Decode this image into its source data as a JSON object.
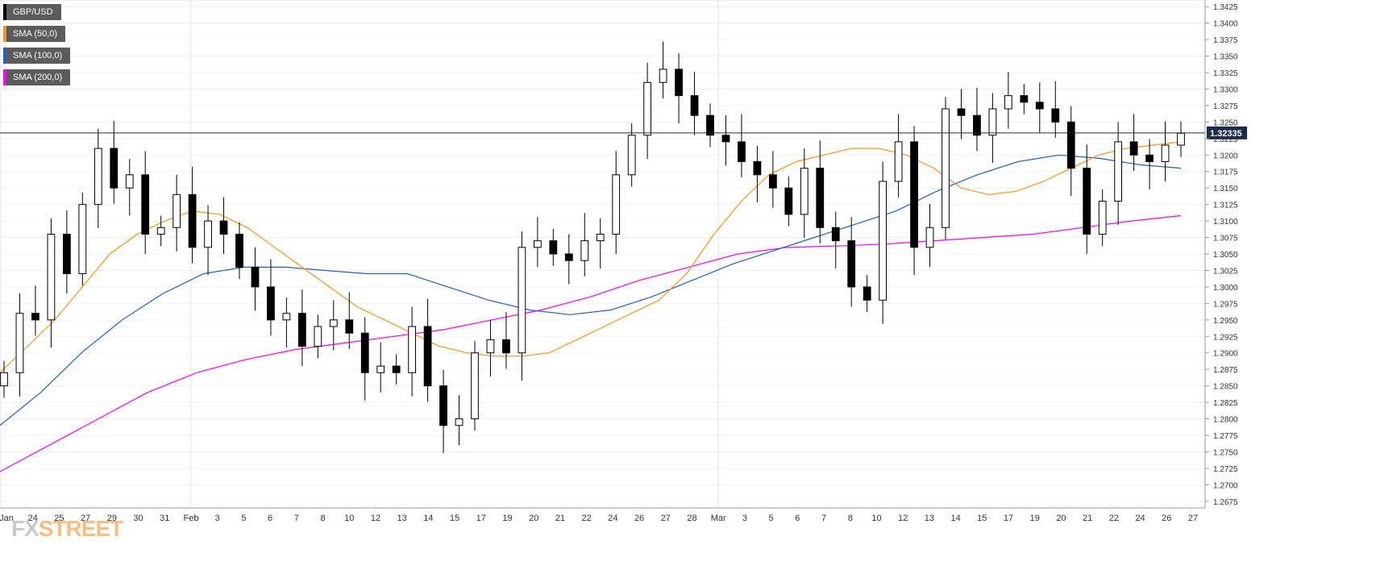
{
  "chart_data": {
    "type": "candlestick",
    "symbol": "GBP/USD",
    "last_price": "1.32335",
    "ylim": [
      1.2665,
      1.3435
    ],
    "y_ticks": [
      "1.3425",
      "1.3400",
      "1.3375",
      "1.3350",
      "1.3325",
      "1.3300",
      "1.3275",
      "1.3250",
      "1.3225",
      "1.3200",
      "1.3175",
      "1.3150",
      "1.3125",
      "1.3100",
      "1.3075",
      "1.3050",
      "1.3025",
      "1.3000",
      "1.2975",
      "1.2950",
      "1.2925",
      "1.2900",
      "1.2875",
      "1.2850",
      "1.2825",
      "1.2800",
      "1.2775",
      "1.2750",
      "1.2725",
      "1.2700",
      "1.2675"
    ],
    "x_labels": [
      "Jan",
      "24",
      "25",
      "27",
      "29",
      "30",
      "31",
      "Feb",
      "3",
      "5",
      "6",
      "7",
      "8",
      "10",
      "12",
      "13",
      "14",
      "15",
      "17",
      "19",
      "20",
      "21",
      "22",
      "24",
      "26",
      "27",
      "28",
      "Mar",
      "3",
      "5",
      "6",
      "7",
      "8",
      "10",
      "12",
      "13",
      "14",
      "15",
      "17",
      "19",
      "20",
      "21",
      "22",
      "24",
      "26",
      "27"
    ],
    "legend": [
      {
        "label": "GBP/USD",
        "color": "#000000"
      },
      {
        "label": "SMA (50,0)",
        "color": "#f7941d"
      },
      {
        "label": "SMA (100,0)",
        "color": "#1f5fbf"
      },
      {
        "label": "SMA (200,0)",
        "color": "#ff00ff"
      }
    ],
    "series": [
      {
        "name": "GBP/USD",
        "type": "close",
        "values": [
          1.287,
          1.296,
          1.295,
          1.308,
          1.302,
          1.3125,
          1.321,
          1.315,
          1.317,
          1.308,
          1.309,
          1.314,
          1.306,
          1.31,
          1.308,
          1.303,
          1.3,
          1.295,
          1.296,
          1.291,
          1.294,
          1.295,
          1.293,
          1.287,
          1.288,
          1.287,
          1.294,
          1.285,
          1.279,
          1.28,
          1.29,
          1.292,
          1.29,
          1.306,
          1.307,
          1.305,
          1.304,
          1.307,
          1.308,
          1.317,
          1.323,
          1.331,
          1.333,
          1.329,
          1.326,
          1.323,
          1.322,
          1.319,
          1.317,
          1.315,
          1.311,
          1.318,
          1.309,
          1.307,
          1.3,
          1.298,
          1.316,
          1.322,
          1.306,
          1.309,
          1.327,
          1.326,
          1.323,
          1.327,
          1.329,
          1.328,
          1.327,
          1.325,
          1.318,
          1.308,
          1.313,
          1.322,
          1.32,
          1.319,
          1.3215,
          1.3233
        ]
      },
      {
        "name": "SMA (50,0)",
        "values": [
          1.287,
          1.291,
          1.295,
          1.3,
          1.305,
          1.308,
          1.31,
          1.3115,
          1.311,
          1.309,
          1.306,
          1.303,
          1.3,
          1.297,
          1.295,
          1.293,
          1.291,
          1.29,
          1.2895,
          1.2895,
          1.29,
          1.292,
          1.294,
          1.296,
          1.298,
          1.302,
          1.308,
          1.313,
          1.317,
          1.319,
          1.32,
          1.321,
          1.321,
          1.32,
          1.318,
          1.315,
          1.314,
          1.3145,
          1.316,
          1.318,
          1.32,
          1.321,
          1.3215,
          1.322
        ]
      },
      {
        "name": "SMA (100,0)",
        "values": [
          1.279,
          1.284,
          1.29,
          1.295,
          1.299,
          1.302,
          1.303,
          1.303,
          1.3025,
          1.302,
          1.302,
          1.3,
          1.298,
          1.2965,
          1.2958,
          1.2965,
          1.2985,
          1.301,
          1.3035,
          1.3055,
          1.3075,
          1.3095,
          1.3115,
          1.3145,
          1.317,
          1.319,
          1.32,
          1.3195,
          1.3185,
          1.318
        ]
      },
      {
        "name": "SMA (200,0)",
        "values": [
          1.272,
          1.276,
          1.28,
          1.284,
          1.287,
          1.289,
          1.2905,
          1.2915,
          1.2925,
          1.2935,
          1.295,
          1.2965,
          1.2985,
          1.301,
          1.303,
          1.305,
          1.306,
          1.3062,
          1.3065,
          1.307,
          1.3075,
          1.308,
          1.309,
          1.31,
          1.3108
        ]
      }
    ]
  }
}
